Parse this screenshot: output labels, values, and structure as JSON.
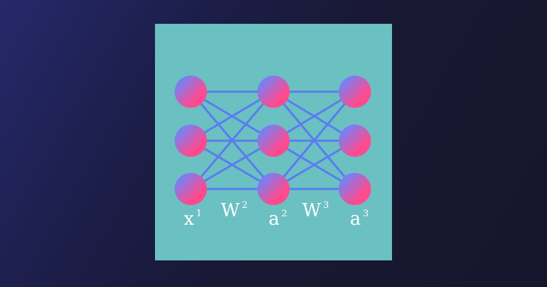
{
  "diagram": {
    "layers": [
      {
        "nodes": 3,
        "label": {
          "base": "x",
          "sup": "1"
        }
      },
      {
        "nodes": 3,
        "label": {
          "base": "a",
          "sup": "2"
        }
      },
      {
        "nodes": 3,
        "label": {
          "base": "a",
          "sup": "3"
        }
      }
    ],
    "weights": [
      {
        "base": "W",
        "sup": "2"
      },
      {
        "base": "W",
        "sup": "3"
      }
    ],
    "colors": {
      "background": "#6bc0c2",
      "edge": "#5a7cf0",
      "node_gradient_start": "#7b7ef2",
      "node_gradient_end": "#ff4a8e"
    }
  }
}
